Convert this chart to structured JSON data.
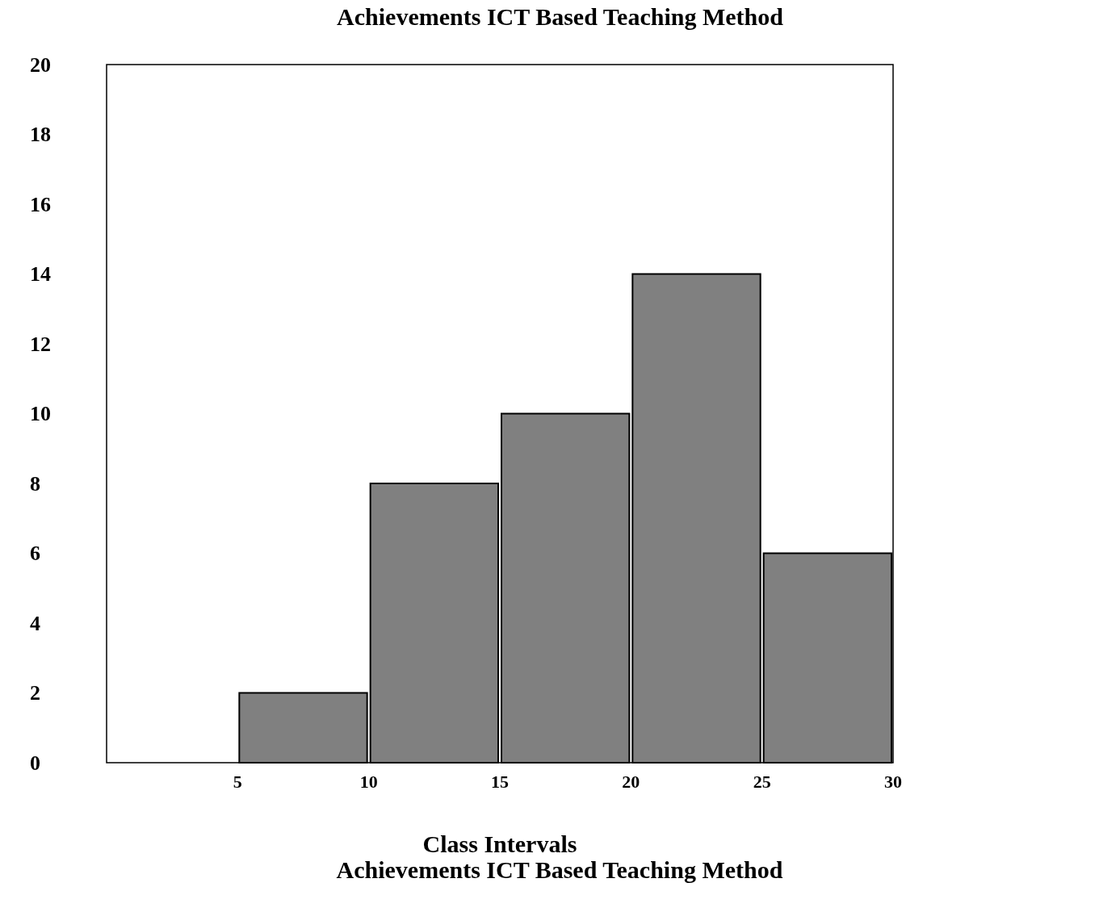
{
  "chart_data": {
    "type": "histogram",
    "title": "Achievements ICT Based Teaching Method",
    "xlabel": "Class Intervals",
    "annotations": [
      "Achievements ICT Based Teaching Method"
    ],
    "bins": [
      5,
      10,
      15,
      20,
      25,
      30
    ],
    "values": [
      2,
      8,
      10,
      14,
      6
    ],
    "color": "#808080",
    "xlim": [
      0,
      30
    ],
    "xticks": [
      5,
      10,
      15,
      20,
      25,
      30
    ],
    "ylim": [
      0,
      20
    ],
    "yticks": [
      0,
      2,
      4,
      6,
      8,
      10,
      12,
      14,
      16,
      18,
      20
    ],
    "grid": false
  }
}
